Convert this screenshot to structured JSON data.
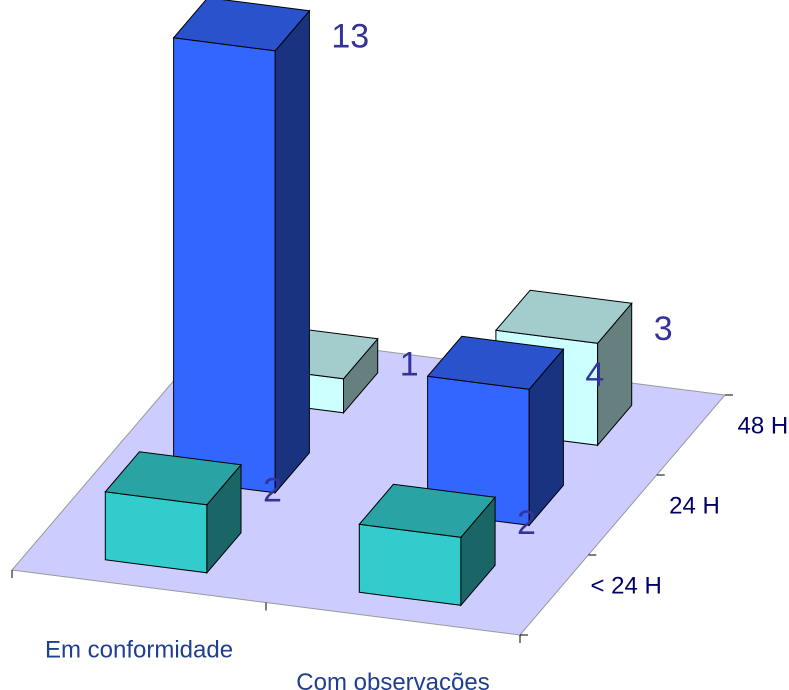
{
  "chart_data": {
    "type": "bar3d",
    "categories": [
      "Em conformidade",
      "Com observações"
    ],
    "series": [
      {
        "name": "< 24 H",
        "color": "#33cccc",
        "values": [
          2,
          2
        ]
      },
      {
        "name": "24 H",
        "color": "#3366ff",
        "values": [
          13,
          4
        ]
      },
      {
        "name": "48 H",
        "color": "#ccffff",
        "values": [
          1,
          3
        ]
      }
    ]
  }
}
